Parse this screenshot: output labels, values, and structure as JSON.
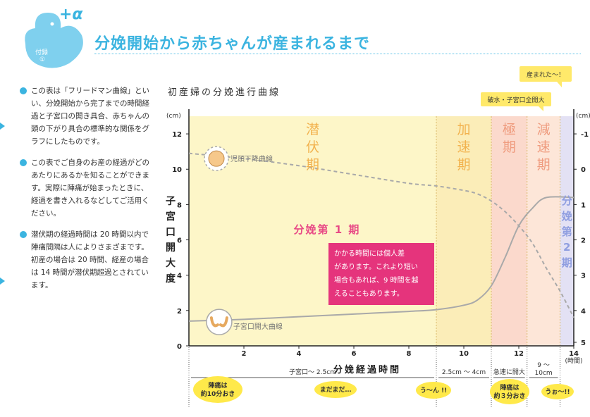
{
  "header": {
    "badge_label": "付録",
    "badge_num": "①",
    "plus_alpha": "+α",
    "title": "分娩開始から赤ちゃんが産まれるまで"
  },
  "notes": [
    "この表は「フリードマン曲線」といい、分娩開始から完了までの時間経過と子宮口の開き具合、赤ちゃんの頭の下がり具合の標準的な関係をグラフにしたものです。",
    "この表でご自身のお産の経過がどのあたりにあるかを知ることができます。実際に陣痛が始まったときに、経過を書き入れるなどしてご活用ください。",
    "潜伏期の経過時間は 20 時間以内で陣痛間隔は人によりさまざまです。初産の場合は 20 時間、経産の場合は 14 時間が潜伏期超過とされています。"
  ],
  "chart_data": {
    "type": "line",
    "title": "初産婦の分娩進行曲線",
    "xlabel": "分娩経過時間",
    "ylabel": "子宮口開大度",
    "y_unit_left": "(cm)",
    "y_unit_right": "(cm)",
    "x_unit": "(時間)",
    "xlim": [
      0,
      14
    ],
    "ylim": [
      0,
      13
    ],
    "xticks": [
      "2",
      "4",
      "6",
      "8",
      "10",
      "12",
      "14"
    ],
    "yticks_left": [
      "0",
      "2",
      "4",
      "6",
      "8",
      "10",
      "12"
    ],
    "yticks_right": [
      "-1",
      "0",
      "1",
      "2",
      "3",
      "4",
      "5"
    ],
    "phases": [
      {
        "label": "潜伏期",
        "x": [
          0,
          9
        ],
        "color": "#fdf6c8",
        "text_color": "#f2b24e"
      },
      {
        "label": "加速期",
        "x": [
          9,
          11
        ],
        "color": "#fbedb8",
        "text_color": "#f2b24e"
      },
      {
        "label": "極期",
        "x": [
          11,
          12.3
        ],
        "color": "#fbd9cc",
        "text_color": "#ef9c7f"
      },
      {
        "label": "減速期",
        "x": [
          12.3,
          13.5
        ],
        "color": "#fde6d8",
        "text_color": "#ef9c7f"
      },
      {
        "label": "分娩第2期",
        "x": [
          13.5,
          14
        ],
        "color": "#e3e1f4",
        "text_color": "#8f9ee0"
      }
    ],
    "stage1_label": "分娩第 1 期",
    "series": [
      {
        "name": "子宮口開大曲線",
        "style": "solid",
        "color": "#a9a9a9",
        "points": [
          [
            0,
            1.4
          ],
          [
            2,
            1.5
          ],
          [
            4,
            1.65
          ],
          [
            6,
            1.8
          ],
          [
            8,
            1.95
          ],
          [
            9,
            2.05
          ],
          [
            10,
            2.3
          ],
          [
            10.5,
            2.6
          ],
          [
            11,
            3.4
          ],
          [
            11.5,
            5
          ],
          [
            12,
            6.8
          ],
          [
            12.5,
            7.8
          ],
          [
            13,
            8.4
          ],
          [
            14,
            8.4
          ]
        ]
      },
      {
        "name": "児頭下降曲線",
        "style": "dashed",
        "color": "#a9a9a9",
        "points": [
          [
            0,
            10.9
          ],
          [
            2,
            10.6
          ],
          [
            4,
            10.2
          ],
          [
            6,
            9.7
          ],
          [
            8,
            9.2
          ],
          [
            9,
            9.05
          ],
          [
            10,
            8.8
          ],
          [
            10.5,
            8.6
          ],
          [
            11,
            8.2
          ],
          [
            11.5,
            7.6
          ],
          [
            12,
            6.8
          ],
          [
            12.5,
            5.8
          ],
          [
            13,
            4.4
          ],
          [
            13.5,
            3.1
          ],
          [
            14,
            1.6
          ]
        ]
      }
    ],
    "annotation": "かかる時間には個人差があります。これより短い場合もあれば、9 時間を越えることもあります。",
    "events": [
      "産まれた〜！",
      "破水・子宮口全開大"
    ],
    "ranges": [
      "子宮口〜 2.5cm",
      "2.5cm 〜 4cm",
      "急速に開大",
      "9 〜\n10cm"
    ],
    "bubbles": [
      "陣痛は\n約10分おき",
      "まだまだ…",
      "う〜ん !!",
      "陣痛は\n約３分おき",
      "うぉ〜!!"
    ]
  }
}
